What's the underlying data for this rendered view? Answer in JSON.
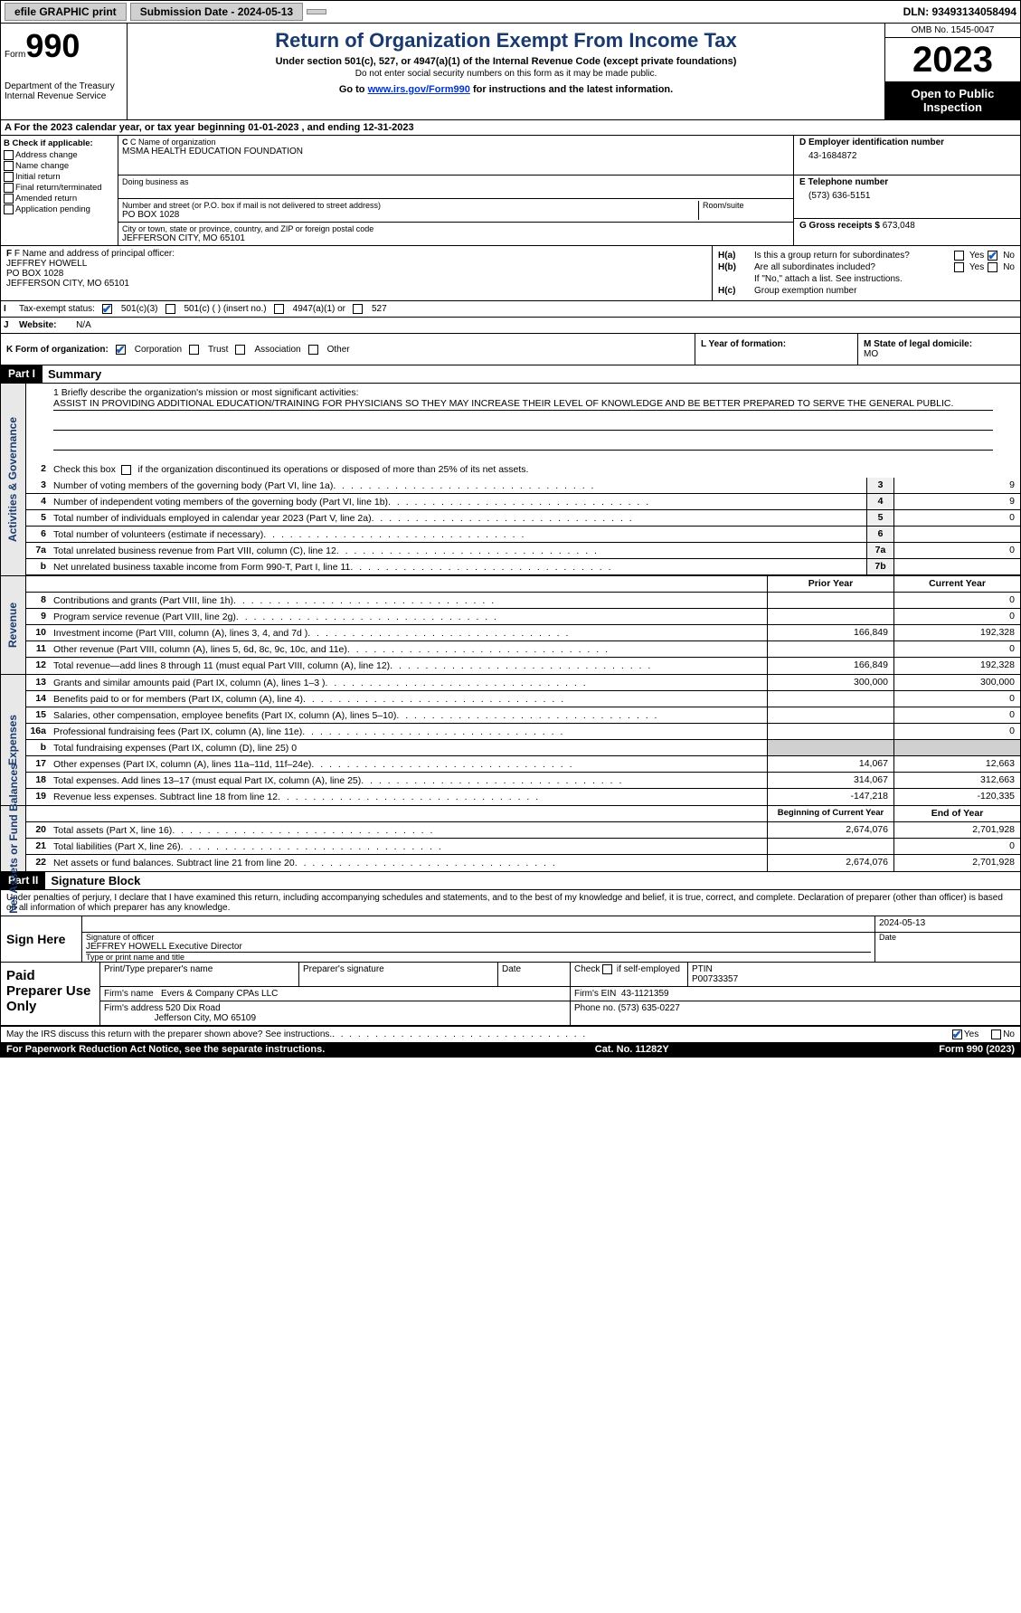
{
  "topbar": {
    "efile": "efile GRAPHIC print",
    "submission": "Submission Date - 2024-05-13",
    "dln": "DLN: 93493134058494"
  },
  "header": {
    "form_label": "Form",
    "form_num": "990",
    "dept": "Department of the Treasury Internal Revenue Service",
    "title": "Return of Organization Exempt From Income Tax",
    "sub": "Under section 501(c), 527, or 4947(a)(1) of the Internal Revenue Code (except private foundations)",
    "sub2": "Do not enter social security numbers on this form as it may be made public.",
    "goto_prefix": "Go to ",
    "goto_link": "www.irs.gov/Form990",
    "goto_suffix": " for instructions and the latest information.",
    "omb": "OMB No. 1545-0047",
    "year": "2023",
    "open": "Open to Public Inspection"
  },
  "row_a": "A For the 2023 calendar year, or tax year beginning 01-01-2023   , and ending 12-31-2023",
  "col_b": {
    "hdr": "B Check if applicable:",
    "items": [
      "Address change",
      "Name change",
      "Initial return",
      "Final return/terminated",
      "Amended return",
      "Application pending"
    ]
  },
  "col_c": {
    "name_lbl": "C Name of organization",
    "name": "MSMA HEALTH EDUCATION FOUNDATION",
    "dba_lbl": "Doing business as",
    "street_lbl": "Number and street (or P.O. box if mail is not delivered to street address)",
    "street": "PO BOX 1028",
    "room_lbl": "Room/suite",
    "city_lbl": "City or town, state or province, country, and ZIP or foreign postal code",
    "city": "JEFFERSON CITY, MO  65101"
  },
  "col_de": {
    "d_lbl": "D Employer identification number",
    "d_val": "43-1684872",
    "e_lbl": "E Telephone number",
    "e_val": "(573) 636-5151",
    "g_lbl": "G Gross receipts $",
    "g_val": "673,048"
  },
  "col_f": {
    "lbl": "F Name and address of principal officer:",
    "name": "JEFFREY HOWELL",
    "street": "PO BOX 1028",
    "city": "JEFFERSON CITY, MO  65101"
  },
  "col_h": {
    "ha_lbl": "H(a)",
    "ha_txt": "Is this a group return for subordinates?",
    "hb_lbl": "H(b)",
    "hb_txt": "Are all subordinates included?",
    "hb_note": "If \"No,\" attach a list. See instructions.",
    "hc_lbl": "H(c)",
    "hc_txt": "Group exemption number",
    "yes": "Yes",
    "no": "No"
  },
  "row_i": {
    "lbl": "I",
    "prefix": "Tax-exempt status:",
    "o1": "501(c)(3)",
    "o2": "501(c) (   ) (insert no.)",
    "o3": "4947(a)(1) or",
    "o4": "527"
  },
  "row_j": {
    "lbl": "J",
    "prefix": "Website:",
    "val": "N/A"
  },
  "row_k": {
    "k": "K Form of organization:",
    "o1": "Corporation",
    "o2": "Trust",
    "o3": "Association",
    "o4": "Other",
    "l": "L Year of formation:",
    "m_lbl": "M State of legal domicile:",
    "m_val": "MO"
  },
  "part1": {
    "hdr": "Part I",
    "title": "Summary"
  },
  "mission": {
    "lbl": "1  Briefly describe the organization's mission or most significant activities:",
    "txt": "ASSIST IN PROVIDING ADDITIONAL EDUCATION/TRAINING FOR PHYSICIANS SO THEY MAY INCREASE THEIR LEVEL OF KNOWLEDGE AND BE BETTER PREPARED TO SERVE THE GENERAL PUBLIC."
  },
  "line2": "Check this box        if the organization discontinued its operations or disposed of more than 25% of its net assets.",
  "sidebars": {
    "s1": "Activities & Governance",
    "s2": "Revenue",
    "s3": "Expenses",
    "s4": "Net Assets or Fund Balances"
  },
  "gov_lines": [
    {
      "n": "3",
      "t": "Number of voting members of the governing body (Part VI, line 1a)",
      "b": "3",
      "v": "9"
    },
    {
      "n": "4",
      "t": "Number of independent voting members of the governing body (Part VI, line 1b)",
      "b": "4",
      "v": "9"
    },
    {
      "n": "5",
      "t": "Total number of individuals employed in calendar year 2023 (Part V, line 2a)",
      "b": "5",
      "v": "0"
    },
    {
      "n": "6",
      "t": "Total number of volunteers (estimate if necessary)",
      "b": "6",
      "v": ""
    },
    {
      "n": "7a",
      "t": "Total unrelated business revenue from Part VIII, column (C), line 12",
      "b": "7a",
      "v": "0"
    },
    {
      "n": "b",
      "t": "Net unrelated business taxable income from Form 990-T, Part I, line 11",
      "b": "7b",
      "v": ""
    }
  ],
  "yr_hdr": {
    "prior": "Prior Year",
    "current": "Current Year"
  },
  "rev_lines": [
    {
      "n": "8",
      "t": "Contributions and grants (Part VIII, line 1h)",
      "p": "",
      "c": "0"
    },
    {
      "n": "9",
      "t": "Program service revenue (Part VIII, line 2g)",
      "p": "",
      "c": "0"
    },
    {
      "n": "10",
      "t": "Investment income (Part VIII, column (A), lines 3, 4, and 7d )",
      "p": "166,849",
      "c": "192,328"
    },
    {
      "n": "11",
      "t": "Other revenue (Part VIII, column (A), lines 5, 6d, 8c, 9c, 10c, and 11e)",
      "p": "",
      "c": "0"
    },
    {
      "n": "12",
      "t": "Total revenue—add lines 8 through 11 (must equal Part VIII, column (A), line 12)",
      "p": "166,849",
      "c": "192,328"
    }
  ],
  "exp_lines": [
    {
      "n": "13",
      "t": "Grants and similar amounts paid (Part IX, column (A), lines 1–3 )",
      "p": "300,000",
      "c": "300,000"
    },
    {
      "n": "14",
      "t": "Benefits paid to or for members (Part IX, column (A), line 4)",
      "p": "",
      "c": "0"
    },
    {
      "n": "15",
      "t": "Salaries, other compensation, employee benefits (Part IX, column (A), lines 5–10)",
      "p": "",
      "c": "0"
    },
    {
      "n": "16a",
      "t": "Professional fundraising fees (Part IX, column (A), line 11e)",
      "p": "",
      "c": "0"
    },
    {
      "n": "b",
      "t": "Total fundraising expenses (Part IX, column (D), line 25) 0",
      "grey": true
    },
    {
      "n": "17",
      "t": "Other expenses (Part IX, column (A), lines 11a–11d, 11f–24e)",
      "p": "14,067",
      "c": "12,663"
    },
    {
      "n": "18",
      "t": "Total expenses. Add lines 13–17 (must equal Part IX, column (A), line 25)",
      "p": "314,067",
      "c": "312,663"
    },
    {
      "n": "19",
      "t": "Revenue less expenses. Subtract line 18 from line 12",
      "p": "-147,218",
      "c": "-120,335"
    }
  ],
  "na_hdr": {
    "b": "Beginning of Current Year",
    "e": "End of Year"
  },
  "na_lines": [
    {
      "n": "20",
      "t": "Total assets (Part X, line 16)",
      "p": "2,674,076",
      "c": "2,701,928"
    },
    {
      "n": "21",
      "t": "Total liabilities (Part X, line 26)",
      "p": "",
      "c": "0"
    },
    {
      "n": "22",
      "t": "Net assets or fund balances. Subtract line 21 from line 20",
      "p": "2,674,076",
      "c": "2,701,928"
    }
  ],
  "part2": {
    "hdr": "Part II",
    "title": "Signature Block"
  },
  "perjury": "Under penalties of perjury, I declare that I have examined this return, including accompanying schedules and statements, and to the best of my knowledge and belief, it is true, correct, and complete. Declaration of preparer (other than officer) is based on all information of which preparer has any knowledge.",
  "sign": {
    "here": "Sign Here",
    "date": "2024-05-13",
    "sig_lbl": "Signature of officer",
    "officer": "JEFFREY HOWELL  Executive Director",
    "type_lbl": "Type or print name and title",
    "date_lbl": "Date"
  },
  "paid": {
    "title": "Paid Preparer Use Only",
    "print_lbl": "Print/Type preparer's name",
    "sig_lbl": "Preparer's signature",
    "date_lbl": "Date",
    "check_lbl": "Check         if self-employed",
    "ptin_lbl": "PTIN",
    "ptin": "P00733357",
    "firm_name_lbl": "Firm's name",
    "firm_name": "Evers & Company CPAs LLC",
    "firm_ein_lbl": "Firm's EIN",
    "firm_ein": "43-1121359",
    "firm_addr_lbl": "Firm's address",
    "firm_addr": "520 Dix Road",
    "firm_city": "Jefferson City, MO  65109",
    "phone_lbl": "Phone no.",
    "phone": "(573) 635-0227"
  },
  "footer": {
    "discuss": "May the IRS discuss this return with the preparer shown above? See instructions.",
    "yes": "Yes",
    "no": "No"
  },
  "bottom": {
    "left": "For Paperwork Reduction Act Notice, see the separate instructions.",
    "mid": "Cat. No. 11282Y",
    "right": "Form 990 (2023)"
  }
}
